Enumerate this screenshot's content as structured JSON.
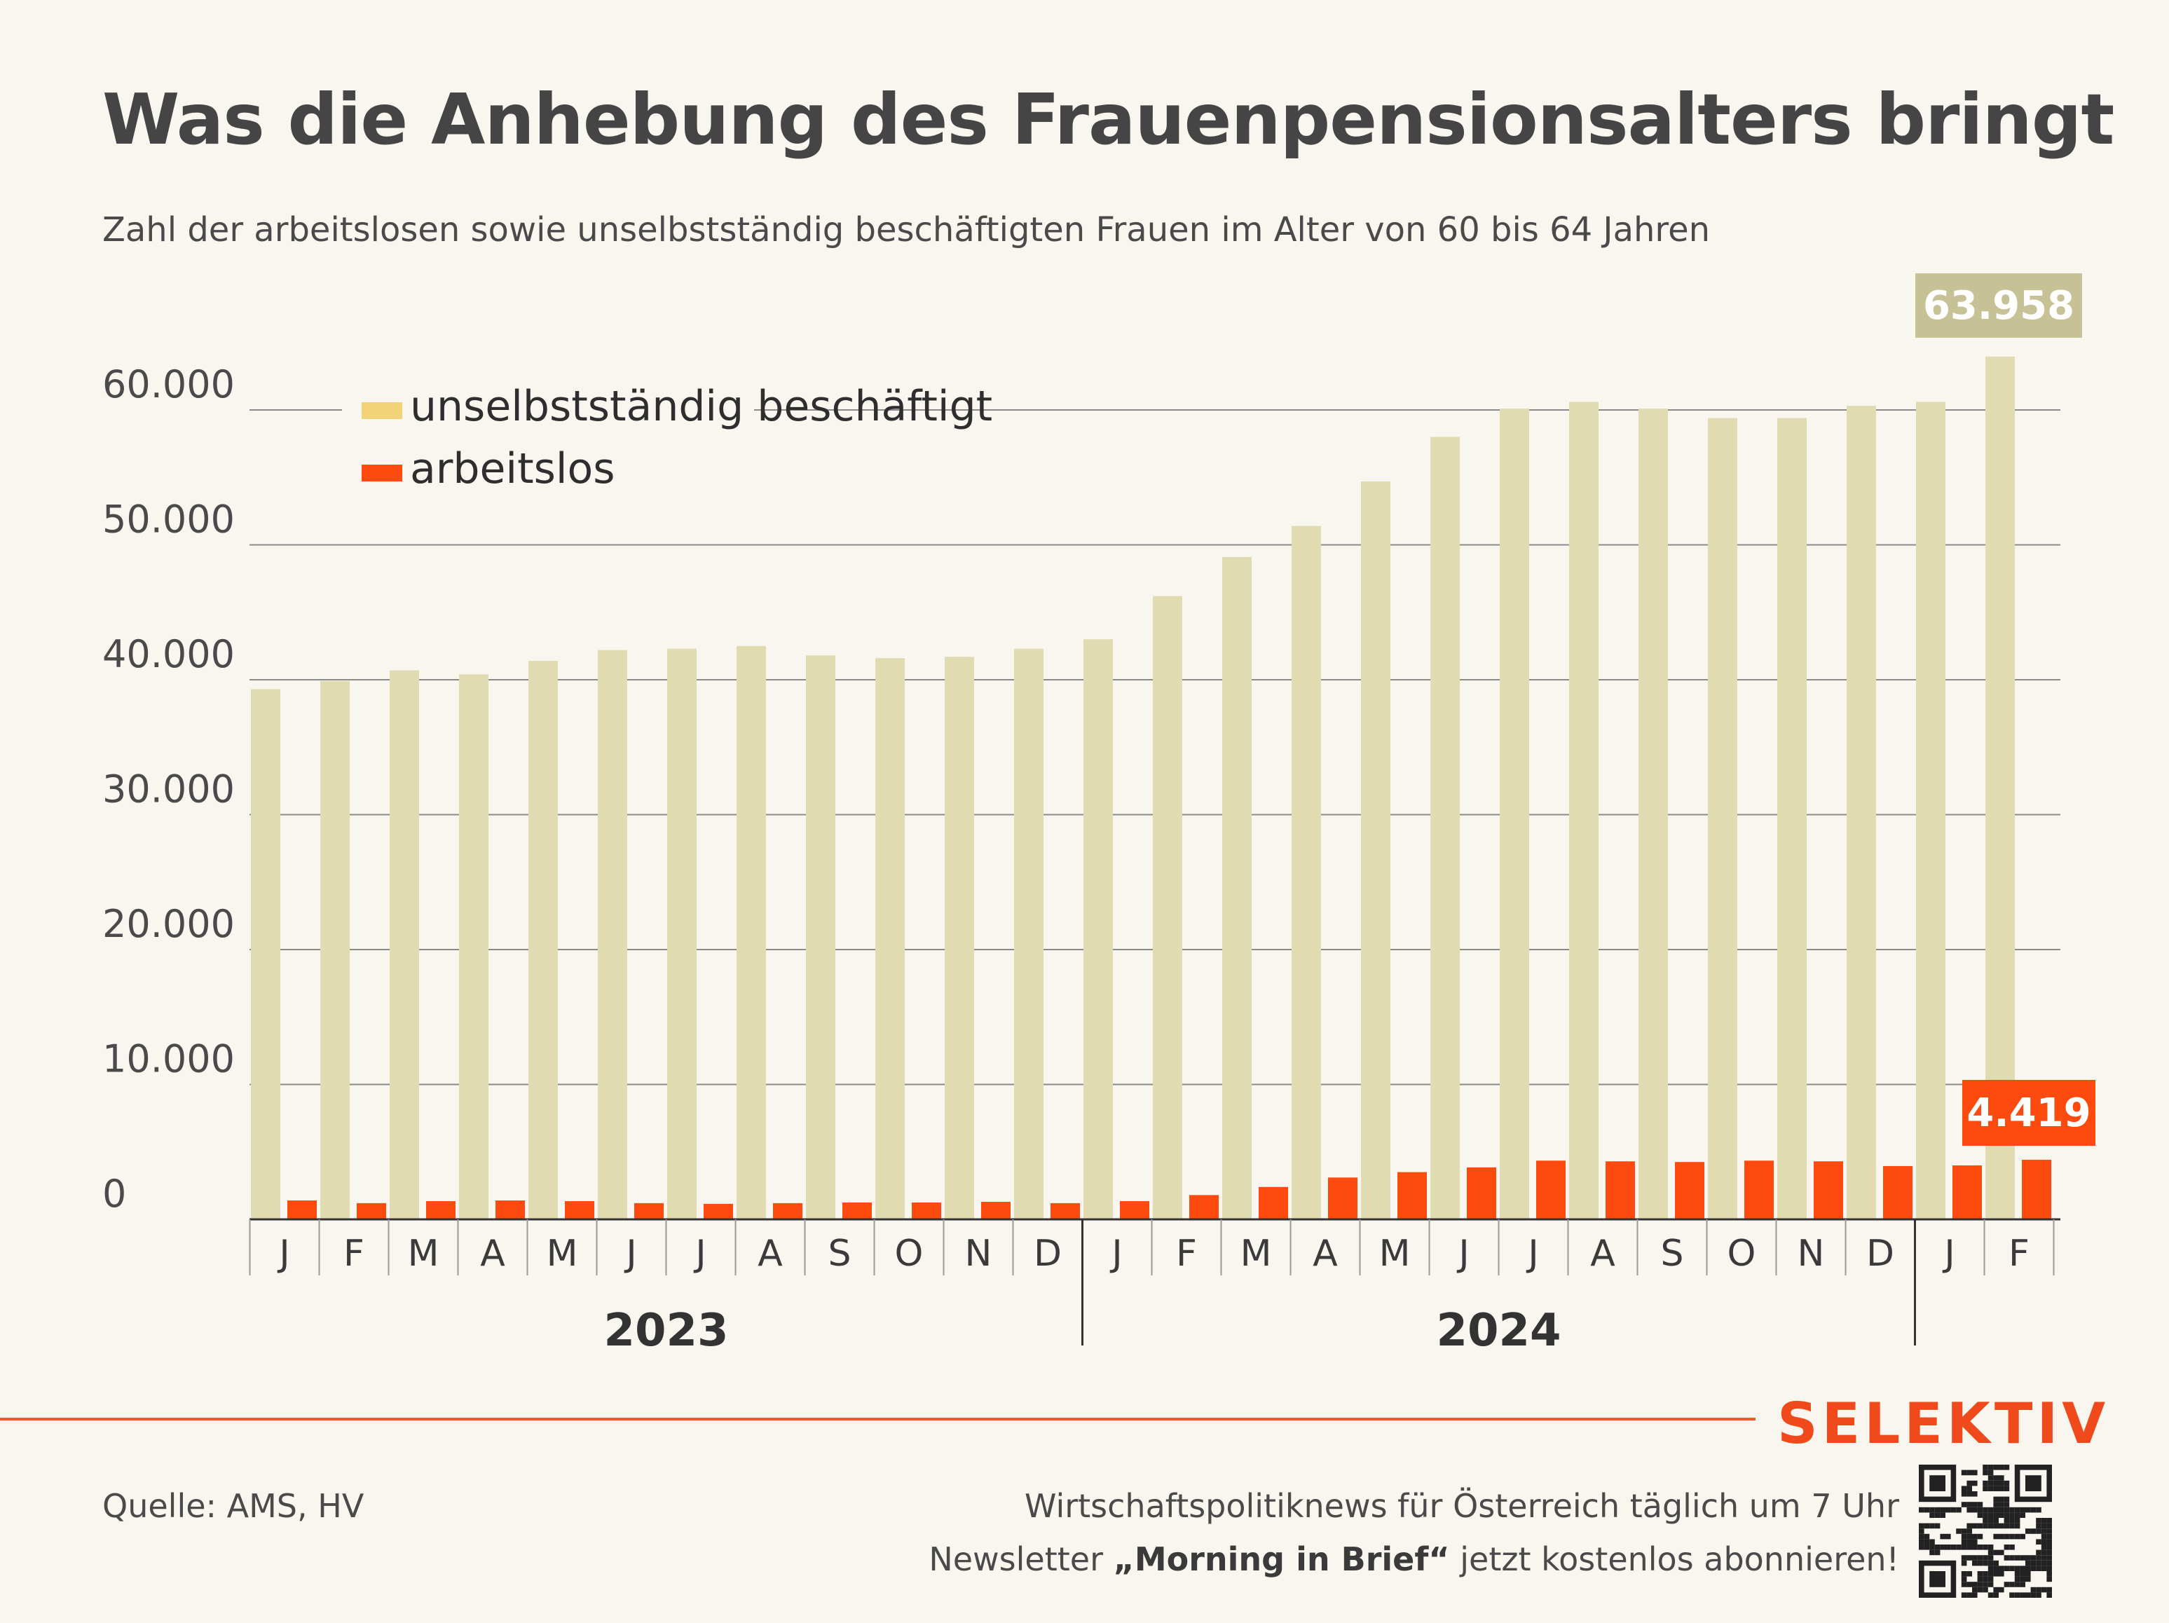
{
  "title": "Was die Anhebung des Frauenpensionsalters bringt",
  "subtitle": "Zahl der arbeitslosen sowie unselbstständig beschäftigten Frauen im Alter von 60 bis 64 Jahren",
  "brand": "SELEKTIV",
  "source": "Quelle: AMS, HV",
  "promo": {
    "line1": "Wirtschaftspolitiknews für Österreich täglich um 7 Uhr",
    "line2_pre": "Newsletter ",
    "line2_bold": "„Morning in Brief“",
    "line2_post": " jetzt kostenlos abonnieren!"
  },
  "colors": {
    "background": "#f8f6ee",
    "employed": "#e0dbb0",
    "employed_legend": "#f2d37a",
    "unemployed": "#fd4a0e",
    "employed_label_bg": "#c7c296",
    "brand": "#f04a1c"
  },
  "icons": {
    "qr": "qr-code-icon"
  },
  "chart_data": {
    "type": "bar",
    "title": "Was die Anhebung des Frauenpensionsalters bringt",
    "subtitle": "Zahl der arbeitslosen sowie unselbstständig beschäftigten Frauen im Alter von 60 bis 64 Jahren",
    "categories": [
      "J",
      "F",
      "M",
      "A",
      "M",
      "J",
      "J",
      "A",
      "S",
      "O",
      "N",
      "D",
      "J",
      "F",
      "M",
      "A",
      "M",
      "J",
      "J",
      "A",
      "S",
      "O",
      "N",
      "D",
      "J",
      "F"
    ],
    "years": [
      {
        "label": "2023",
        "count": 12
      },
      {
        "label": "2024",
        "count": 12
      },
      {
        "label": "",
        "count": 2
      }
    ],
    "series": [
      {
        "name": "unselbstständig beschäftigt",
        "values": [
          39300,
          39900,
          40700,
          40400,
          41400,
          42200,
          42300,
          42500,
          41800,
          41600,
          41700,
          42300,
          43000,
          46200,
          49100,
          51400,
          54700,
          58000,
          60100,
          60600,
          60100,
          59400,
          59400,
          60300,
          60600,
          63958
        ]
      },
      {
        "name": "arbeitslos",
        "values": [
          1400,
          1200,
          1350,
          1400,
          1350,
          1200,
          1150,
          1200,
          1250,
          1250,
          1300,
          1200,
          1350,
          1800,
          2400,
          3100,
          3500,
          3850,
          4350,
          4300,
          4250,
          4350,
          4300,
          3950,
          4000,
          4419
        ]
      }
    ],
    "highlight_labels": [
      "63.958",
      "4.419"
    ],
    "ylim": [
      0,
      65000
    ],
    "yticks": [
      0,
      10000,
      20000,
      30000,
      40000,
      50000,
      60000
    ],
    "ytick_labels": [
      "0",
      "10.000",
      "20.000",
      "30.000",
      "40.000",
      "50.000",
      "60.000"
    ],
    "grid": true,
    "legend": "top-left"
  }
}
